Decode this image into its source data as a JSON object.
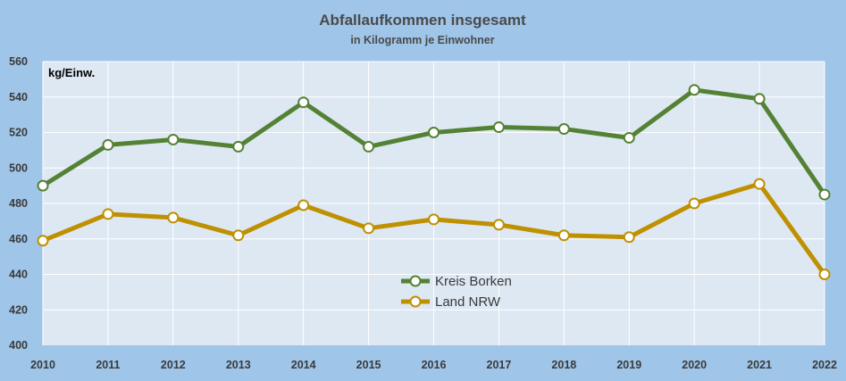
{
  "colors": {
    "background": "#9fc5e8",
    "plot_area": "#dde8f3",
    "grid": "#ffffff",
    "kreis_borken": "#548235",
    "land_nrw": "#bf9000"
  },
  "chart_data": {
    "type": "line",
    "title": "Abfallaufkommen insgesamt",
    "subtitle": "in Kilogramm je Einwohner",
    "ylabel": "kg/Einw.",
    "xlabel": "",
    "x": [
      "2010",
      "2011",
      "2012",
      "2013",
      "2014",
      "2015",
      "2016",
      "2017",
      "2018",
      "2019",
      "2020",
      "2021",
      "2022"
    ],
    "ylim": [
      400,
      560
    ],
    "yticks": [
      400,
      420,
      440,
      460,
      480,
      500,
      520,
      540,
      560
    ],
    "grid": true,
    "legend_position": "center-bottom",
    "series": [
      {
        "name": "Kreis Borken",
        "color": "#548235",
        "values": [
          490,
          513,
          516,
          512,
          537,
          512,
          520,
          523,
          522,
          517,
          544,
          539,
          485
        ]
      },
      {
        "name": "Land NRW",
        "color": "#bf9000",
        "values": [
          459,
          474,
          472,
          462,
          479,
          466,
          471,
          468,
          462,
          461,
          480,
          491,
          440
        ]
      }
    ]
  }
}
